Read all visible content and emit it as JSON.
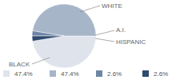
{
  "chart_data": {
    "type": "pie",
    "categories": [
      "WHITE",
      "BLACK",
      "A.I.",
      "HISPANIC"
    ],
    "values": [
      47.4,
      47.4,
      2.6,
      2.6
    ],
    "value_labels": [
      "47.4%",
      "47.4%",
      "2.6%",
      "2.6%"
    ],
    "colors": [
      "#dfe4ec",
      "#a7b5c9",
      "#6e86a6",
      "#2e4a6e"
    ],
    "legend": "bottom"
  }
}
